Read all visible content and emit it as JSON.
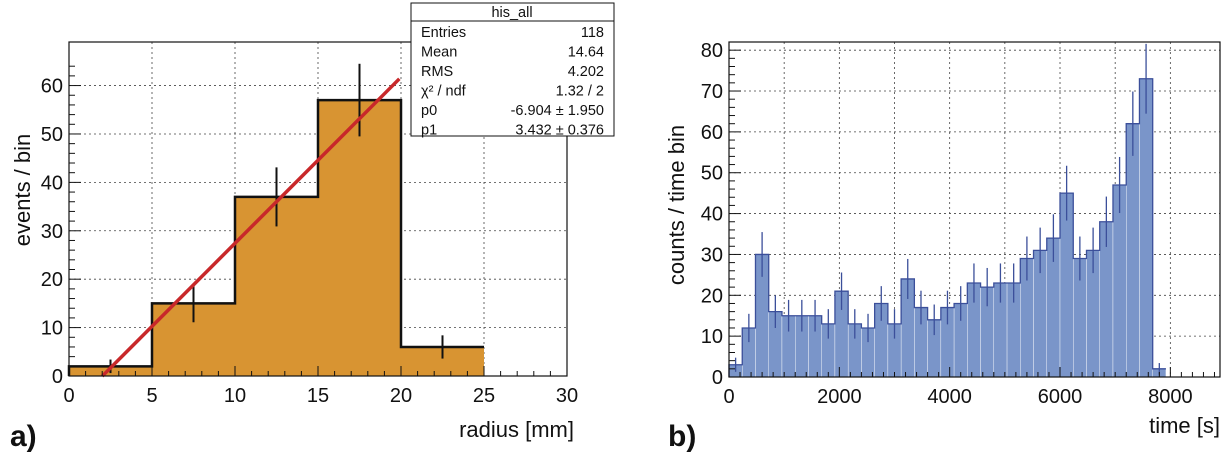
{
  "chart_data": [
    {
      "type": "bar",
      "panel_label": "a)",
      "xlabel": "radius [mm]",
      "ylabel": "events / bin",
      "xlim": [
        0,
        30
      ],
      "ylim": [
        0,
        69
      ],
      "xticks": [
        "0",
        "5",
        "10",
        "15",
        "20",
        "25",
        "30"
      ],
      "yticks": [
        "0",
        "10",
        "20",
        "30",
        "40",
        "50",
        "60"
      ],
      "bin_edges": [
        0,
        5,
        10,
        15,
        20,
        25
      ],
      "values": [
        2,
        15,
        37,
        57,
        6
      ],
      "errors": [
        1.4,
        3.9,
        6.1,
        7.5,
        2.4
      ],
      "fill_color": "#d89432",
      "fit": {
        "p0": -6.904,
        "p1": 3.432,
        "x_from": 2.0,
        "x_to": 19.9,
        "color": "#c8282a"
      },
      "stats": {
        "title": "his_all",
        "rows": [
          {
            "label": "Entries",
            "value": "118"
          },
          {
            "label": "Mean",
            "value": "14.64"
          },
          {
            "label": "RMS",
            "value": "4.202"
          },
          {
            "label": "χ² / ndf",
            "value": "1.32 / 2"
          },
          {
            "label": "p0",
            "value": "-6.904 ± 1.950"
          },
          {
            "label": "p1",
            "value": "3.432 ± 0.376"
          }
        ]
      }
    },
    {
      "type": "bar",
      "panel_label": "b)",
      "xlabel": "time [s]",
      "ylabel": "counts / time bin",
      "xlim": [
        0,
        8900
      ],
      "ylim": [
        0,
        82
      ],
      "xticks": [
        "0",
        "2000",
        "4000",
        "6000",
        "8000"
      ],
      "yticks": [
        "0",
        "10",
        "20",
        "30",
        "40",
        "50",
        "60",
        "70",
        "80"
      ],
      "bin_width": 240,
      "values": [
        3,
        12,
        30,
        16,
        15,
        15,
        15,
        13,
        21,
        13,
        12,
        18,
        13,
        24,
        17,
        14,
        17,
        18,
        23,
        22,
        23,
        23,
        29,
        31,
        34,
        45,
        29,
        31,
        38,
        47,
        62,
        73,
        2
      ],
      "fill_color": "#7a95c9",
      "edge_color": "#3b4f9a"
    }
  ]
}
